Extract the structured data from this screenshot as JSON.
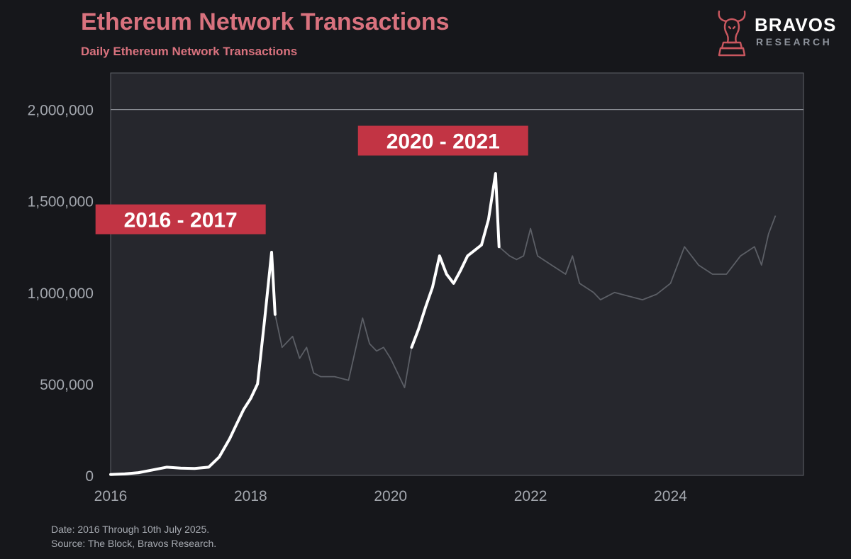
{
  "header": {
    "title": "Ethereum Network Transactions",
    "subtitle": "Daily Ethereum Network Transactions"
  },
  "logo": {
    "name": "BRAVOS",
    "sub": "RESEARCH",
    "icon": "bull-knight-icon"
  },
  "footer": {
    "date_note": "Date: 2016 Through 10th July 2025.",
    "source_note": "Source: The Block, Bravos Research."
  },
  "colors": {
    "background": "#16171b",
    "plot_background": "#26272d",
    "title": "#d9727e",
    "highlight": "#ffffff",
    "series": "#5c5f66",
    "annotation": "#c23444"
  },
  "chart_data": {
    "type": "line",
    "title": "Ethereum Network Transactions",
    "subtitle": "Daily Ethereum Network Transactions",
    "xlabel": "",
    "ylabel": "",
    "xlim": [
      2016,
      2025.9
    ],
    "ylim": [
      0,
      2200000
    ],
    "x_ticks": [
      2016,
      2018,
      2020,
      2022,
      2024
    ],
    "x_tick_labels": [
      "2016",
      "2018",
      "2020",
      "2022",
      "2024"
    ],
    "y_ticks": [
      0,
      500000,
      1000000,
      1500000,
      2000000
    ],
    "y_tick_labels": [
      "0",
      "500,000",
      "1,000,000",
      "1,500,000",
      "2,000,000"
    ],
    "grid": false,
    "reference_line": 2000000,
    "annotations": [
      {
        "text": "2016 - 2017",
        "x": 2017.0,
        "y": 1400000
      },
      {
        "text": "2020 - 2021",
        "x": 2020.75,
        "y": 1830000
      }
    ],
    "series": [
      {
        "x": [
          2016.0,
          2016.2,
          2016.4,
          2016.6,
          2016.8,
          2017.0,
          2017.2,
          2017.4,
          2017.55,
          2017.7,
          2017.8,
          2017.9,
          2018.0,
          2018.1,
          2018.2,
          2018.3,
          2018.35,
          2018.45,
          2018.6,
          2018.7,
          2018.8,
          2018.9,
          2019.0,
          2019.2,
          2019.4,
          2019.6,
          2019.7,
          2019.8,
          2019.9,
          2020.0,
          2020.1,
          2020.2,
          2020.3,
          2020.4,
          2020.5,
          2020.6,
          2020.7,
          2020.8,
          2020.9,
          2021.0,
          2021.1,
          2021.2,
          2021.3,
          2021.4,
          2021.5,
          2021.55,
          2021.7,
          2021.8,
          2021.9,
          2022.0,
          2022.1,
          2022.3,
          2022.5,
          2022.6,
          2022.7,
          2022.9,
          2023.0,
          2023.2,
          2023.4,
          2023.6,
          2023.8,
          2024.0,
          2024.2,
          2024.4,
          2024.6,
          2024.8,
          2025.0,
          2025.2,
          2025.3,
          2025.4,
          2025.5
        ],
        "y": [
          5000,
          8000,
          15000,
          30000,
          45000,
          40000,
          38000,
          45000,
          100000,
          200000,
          280000,
          360000,
          420000,
          500000,
          850000,
          1220000,
          880000,
          700000,
          760000,
          640000,
          700000,
          560000,
          540000,
          540000,
          520000,
          860000,
          720000,
          680000,
          700000,
          640000,
          560000,
          480000,
          700000,
          800000,
          920000,
          1030000,
          1200000,
          1100000,
          1050000,
          1120000,
          1200000,
          1230000,
          1260000,
          1400000,
          1650000,
          1250000,
          1200000,
          1180000,
          1200000,
          1350000,
          1200000,
          1150000,
          1100000,
          1200000,
          1050000,
          1000000,
          960000,
          1000000,
          980000,
          960000,
          990000,
          1050000,
          1250000,
          1150000,
          1100000,
          1100000,
          1200000,
          1250000,
          1150000,
          1320000,
          1420000
        ]
      }
    ],
    "highlight_ranges": [
      [
        2016.0,
        2018.35
      ],
      [
        2020.3,
        2021.55
      ]
    ]
  }
}
